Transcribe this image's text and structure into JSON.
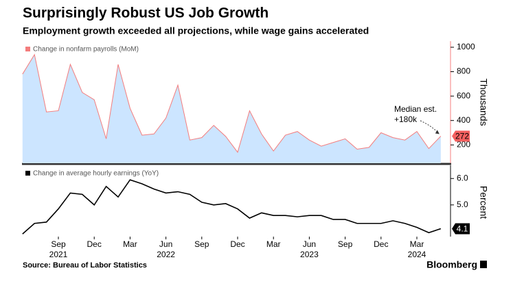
{
  "title": "Surprisingly Robust US Job Growth",
  "subtitle": "Employment growth exceeded all projections, while wage gains accelerated",
  "source": "Source: Bureau of Labor Statistics",
  "brand": "Bloomberg",
  "chart_data": [
    {
      "type": "area",
      "series": [
        {
          "name": "Change in nonfarm payrolls (MoM)",
          "color": "#f47c7c",
          "fill": "#cce5ff",
          "values": [
            780,
            940,
            470,
            480,
            860,
            630,
            570,
            250,
            860,
            500,
            280,
            290,
            420,
            690,
            240,
            260,
            360,
            270,
            140,
            480,
            290,
            150,
            280,
            310,
            240,
            190,
            220,
            250,
            165,
            180,
            300,
            260,
            240,
            310,
            170,
            272
          ]
        }
      ],
      "ylabel": "Thousands",
      "ylim": [
        50,
        1050
      ],
      "yticks": [
        200,
        400,
        600,
        800,
        1000
      ],
      "annotation": [
        "Median est.",
        "+180k"
      ],
      "label_color": "#f4605f"
    },
    {
      "type": "line",
      "categories": [
        null,
        null,
        null,
        "Sep",
        null,
        null,
        "Dec",
        null,
        null,
        "Mar",
        null,
        null,
        "Jun",
        null,
        null,
        "Sep",
        null,
        null,
        "Dec",
        null,
        null,
        "Mar",
        null,
        null,
        "Jun",
        null,
        null,
        "Sep",
        null,
        null,
        "Dec",
        null,
        null,
        "Mar",
        null,
        null
      ],
      "x_years": [
        null,
        null,
        null,
        "2021",
        null,
        null,
        null,
        null,
        null,
        null,
        null,
        null,
        "2022",
        null,
        null,
        null,
        null,
        null,
        null,
        null,
        null,
        null,
        null,
        null,
        "2023",
        null,
        null,
        null,
        null,
        null,
        null,
        null,
        null,
        "2024",
        null,
        null
      ],
      "series": [
        {
          "name": "Change in average hourly earnings (YoY)",
          "color": "#000000",
          "values": [
            3.9,
            4.3,
            4.35,
            4.85,
            5.45,
            5.4,
            5.0,
            5.7,
            5.3,
            5.95,
            5.8,
            5.6,
            5.45,
            5.5,
            5.4,
            5.1,
            5.0,
            5.05,
            4.85,
            4.5,
            4.7,
            4.6,
            4.6,
            4.55,
            4.6,
            4.6,
            4.45,
            4.45,
            4.3,
            4.3,
            4.3,
            4.4,
            4.3,
            4.15,
            3.95,
            4.1
          ]
        }
      ],
      "ylabel": "Percent",
      "ylim": [
        3.8,
        6.5
      ],
      "yticks": [
        {
          "value": 5,
          "label": "5.0"
        },
        {
          "value": 6,
          "label": "6.0"
        }
      ]
    }
  ]
}
